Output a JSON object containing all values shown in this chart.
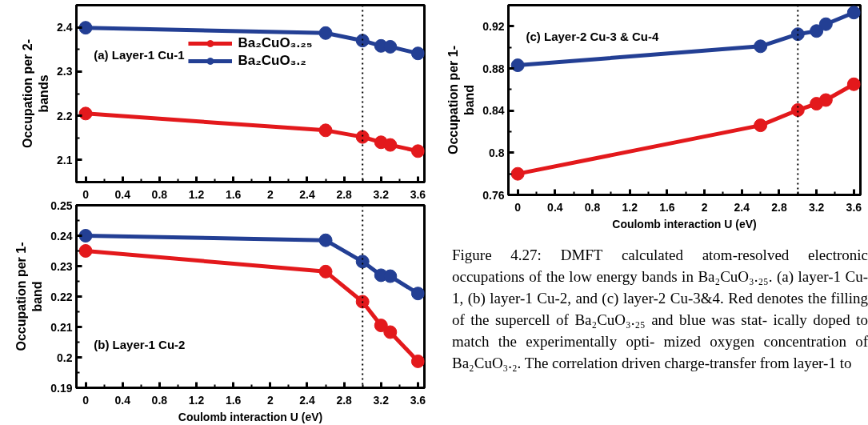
{
  "chart_data": [
    {
      "type": "line",
      "title": "(a) Layer-1 Cu-1",
      "ylabel": "Occupation per 2-\nbands",
      "x": [
        0,
        2.6,
        3.0,
        3.2,
        3.3,
        3.6
      ],
      "xlim": [
        -0.1,
        3.67
      ],
      "xticks": [
        0,
        0.4,
        0.8,
        1.2,
        1.6,
        2,
        2.4,
        2.8,
        3.2,
        3.6
      ],
      "ylim": [
        2.05,
        2.45
      ],
      "yticks": [
        2.1,
        2.2,
        2.3,
        2.4
      ],
      "marker": "circle",
      "line_style": "solid",
      "grid": false,
      "legend": "top",
      "ref_lines": [
        {
          "axis": "x",
          "value": 3.0,
          "line_style": "dotted",
          "color": "#000000"
        }
      ],
      "series": [
        {
          "name": "Ba₂CuO₃.₂₅",
          "color": "#e3191c",
          "values": [
            2.205,
            2.167,
            2.152,
            2.14,
            2.134,
            2.12
          ]
        },
        {
          "name": "Ba₂CuO₃.₂",
          "color": "#233f94",
          "values": [
            2.399,
            2.387,
            2.37,
            2.358,
            2.356,
            2.341
          ]
        }
      ]
    },
    {
      "type": "line",
      "title": "(b) Layer-1 Cu-2",
      "xlabel": "Coulomb interaction U (eV)",
      "ylabel": "Occupation per 1-\nband",
      "x": [
        0,
        2.6,
        3.0,
        3.2,
        3.3,
        3.6
      ],
      "xlim": [
        -0.1,
        3.67
      ],
      "xticks": [
        0,
        0.4,
        0.8,
        1.2,
        1.6,
        2,
        2.4,
        2.8,
        3.2,
        3.6
      ],
      "ylim": [
        0.19,
        0.25
      ],
      "yticks": [
        0.19,
        0.2,
        0.21,
        0.22,
        0.23,
        0.24,
        0.25
      ],
      "marker": "circle",
      "line_style": "solid",
      "grid": false,
      "legend": false,
      "ref_lines": [
        {
          "axis": "x",
          "value": 3.0,
          "line_style": "dotted",
          "color": "#000000"
        }
      ],
      "series": [
        {
          "color": "#e3191c",
          "values": [
            0.235,
            0.2282,
            0.2183,
            0.2105,
            0.2083,
            0.1987
          ]
        },
        {
          "color": "#233f94",
          "values": [
            0.24,
            0.2385,
            0.2315,
            0.227,
            0.2267,
            0.221
          ]
        }
      ]
    },
    {
      "type": "line",
      "title": "(c) Layer-2 Cu-3 & Cu-4",
      "xlabel": "Coulomb interaction U (eV)",
      "ylabel": "Occupation per 1-\nband",
      "x": [
        0,
        2.6,
        3.0,
        3.2,
        3.3,
        3.6
      ],
      "xlim": [
        -0.1,
        3.67
      ],
      "xticks": [
        0,
        0.4,
        0.8,
        1.2,
        1.6,
        2,
        2.4,
        2.8,
        3.2,
        3.6
      ],
      "ylim": [
        0.76,
        0.94
      ],
      "yticks": [
        0.76,
        0.8,
        0.84,
        0.88,
        0.92
      ],
      "marker": "circle",
      "line_style": "solid",
      "grid": false,
      "legend": false,
      "ref_lines": [
        {
          "axis": "x",
          "value": 3.0,
          "line_style": "dotted",
          "color": "#000000"
        }
      ],
      "annotations": [
        "Figure 4.27: DMFT calculated atom-resolved electronic occupations of the low energy bands in Ba₂CuO₃.₂₅. (a) layer-1 Cu-1, (b) layer-1 Cu-2, and (c) layer-2 Cu-3&4. Red denotes the filling of the supercell of Ba₂CuO₃.₂₅ and blue was stat- ically doped to match the experimentally opti- mized oxygen concentration of Ba₂CuO₃.₂. The correlation driven charge-transfer from layer-1 to"
      ],
      "series": [
        {
          "color": "#e3191c",
          "values": [
            0.78,
            0.826,
            0.8405,
            0.8465,
            0.85,
            0.865
          ]
        },
        {
          "color": "#233f94",
          "values": [
            0.883,
            0.901,
            0.9125,
            0.9155,
            0.922,
            0.933
          ]
        }
      ]
    }
  ]
}
